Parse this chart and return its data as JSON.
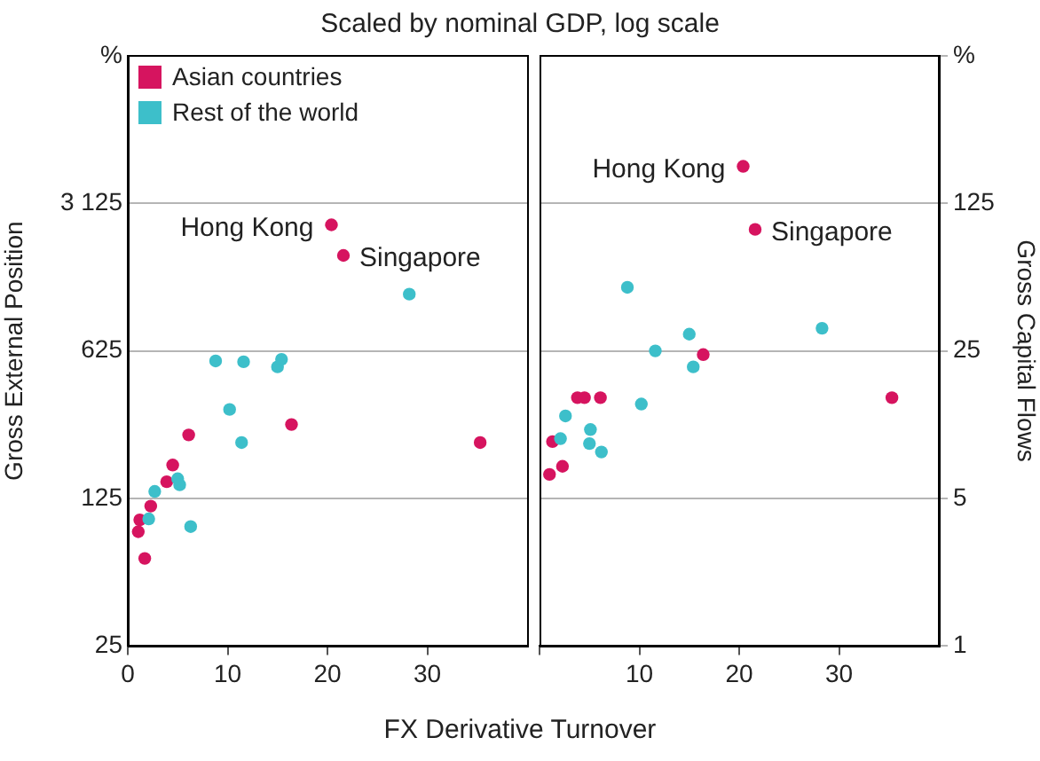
{
  "chart_data": [
    {
      "type": "scatter",
      "subtitle": "Scaled by nominal GDP, log scale",
      "xlabel": "FX Derivative Turnover",
      "ylabel": "Gross External Position",
      "xlim": [
        0,
        40
      ],
      "xticks": [
        0,
        10,
        20,
        30
      ],
      "ylim": [
        25,
        15625
      ],
      "yticks": [
        25,
        125,
        625,
        {
          "value": 3125,
          "label": "3 125"
        },
        {
          "value": 15625,
          "label": "%"
        }
      ],
      "log": true,
      "grid": "y",
      "legend": "top left",
      "marker": "circle",
      "series": [
        {
          "name": "Asian countries",
          "color": "#d6145f",
          "x": [
            20.4,
            21.6,
            16.4,
            35.3,
            6.1,
            4.5,
            3.9,
            2.3,
            1.2,
            1.05,
            1.7
          ],
          "values": [
            2470,
            1770,
            280,
            230,
            250,
            180,
            150,
            115,
            99,
            87,
            65
          ]
        },
        {
          "name": "Rest of the world",
          "color": "#3dbfca",
          "x": [
            28.2,
            8.8,
            11.6,
            15.0,
            15.4,
            10.2,
            11.4,
            5.0,
            5.2,
            2.7,
            2.1,
            6.3
          ],
          "values": [
            1160,
            560,
            555,
            525,
            570,
            330,
            230,
            155,
            145,
            135,
            100,
            92
          ]
        }
      ],
      "annotations": [
        "Hong Kong",
        "Singapore"
      ]
    },
    {
      "type": "scatter",
      "ylabel": "Gross Capital Flows",
      "xlim": [
        0,
        40
      ],
      "xticks": [
        {
          "value": 0,
          "label": null
        },
        10,
        20,
        30
      ],
      "ylim": [
        1,
        625
      ],
      "yticks": [
        1,
        5,
        25,
        125,
        {
          "value": 625,
          "label": "%"
        }
      ],
      "log": true,
      "grid": "y",
      "marker": "circle",
      "series": [
        {
          "color": "#d6145f",
          "x": [
            20.4,
            21.6,
            16.4,
            35.3,
            6.1,
            3.8,
            4.5,
            1.3,
            1.0,
            2.3
          ],
          "values": [
            187,
            94,
            24,
            15,
            15,
            15,
            15,
            9.3,
            6.5,
            7.1
          ]
        },
        {
          "color": "#3dbfca",
          "x": [
            28.3,
            8.8,
            11.6,
            15.0,
            15.4,
            10.2,
            5.0,
            5.1,
            2.6,
            2.1,
            6.2
          ],
          "values": [
            32,
            50,
            25,
            30,
            21,
            14,
            9.1,
            10.6,
            12.3,
            9.6,
            8.3
          ]
        }
      ],
      "annotations": [
        "Hong Kong",
        "Singapore"
      ]
    }
  ]
}
